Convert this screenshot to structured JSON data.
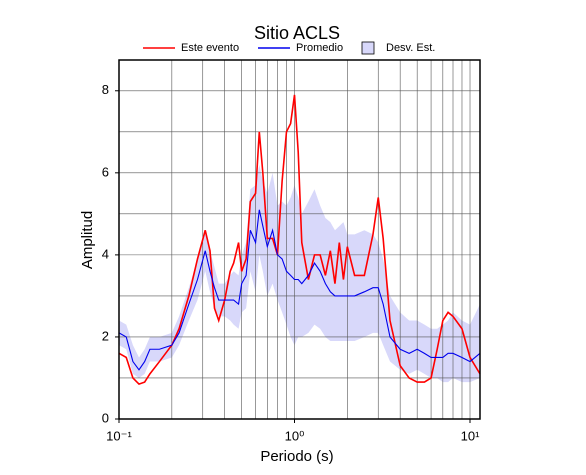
{
  "chart_data": {
    "type": "line",
    "title": "Sitio ACLS",
    "xlabel": "Periodo (s)",
    "ylabel": "Amplitud",
    "xscale": "log",
    "grid": true,
    "xlim": [
      0.1,
      11.4
    ],
    "ylim": [
      0,
      8.75
    ],
    "xticks": [
      {
        "value": 0.1,
        "label": "10⁻¹"
      },
      {
        "value": 1,
        "label": "10⁰"
      },
      {
        "value": 10,
        "label": "10¹"
      }
    ],
    "xminor": [
      0.2,
      0.3,
      0.4,
      0.5,
      0.6,
      0.7,
      0.8,
      0.9,
      2,
      3,
      4,
      5,
      6,
      7,
      8,
      9
    ],
    "yticks": [
      0,
      2,
      4,
      6,
      8
    ],
    "yminor": [
      1,
      3,
      5,
      7
    ],
    "x": [
      0.1,
      0.11,
      0.12,
      0.13,
      0.14,
      0.15,
      0.17,
      0.2,
      0.22,
      0.25,
      0.28,
      0.31,
      0.33,
      0.35,
      0.37,
      0.4,
      0.43,
      0.45,
      0.48,
      0.5,
      0.53,
      0.56,
      0.6,
      0.63,
      0.66,
      0.7,
      0.75,
      0.8,
      0.85,
      0.9,
      0.95,
      1.0,
      1.05,
      1.1,
      1.2,
      1.3,
      1.4,
      1.5,
      1.6,
      1.7,
      1.8,
      1.9,
      2.0,
      2.2,
      2.5,
      2.8,
      3.0,
      3.2,
      3.5,
      4.0,
      4.5,
      5.0,
      5.5,
      6.0,
      6.5,
      7.0,
      7.5,
      8.0,
      9.0,
      10,
      11.4
    ],
    "band": {
      "name": "Desv. Est.",
      "color": "#d8d8fa",
      "upper": [
        2.4,
        2.3,
        1.8,
        1.5,
        1.7,
        2.0,
        2.0,
        2.1,
        2.5,
        3.2,
        3.9,
        4.6,
        4.1,
        3.7,
        3.3,
        3.3,
        3.5,
        3.6,
        3.5,
        4.0,
        4.3,
        5.6,
        5.7,
        6.2,
        5.8,
        5.5,
        6.0,
        5.2,
        5.3,
        5.2,
        5.4,
        5.7,
        5.4,
        5.0,
        5.3,
        5.6,
        5.2,
        4.9,
        4.8,
        4.6,
        4.7,
        4.8,
        4.5,
        4.5,
        4.6,
        4.5,
        4.3,
        3.9,
        3.0,
        2.6,
        2.4,
        2.4,
        2.3,
        2.2,
        2.2,
        2.3,
        2.4,
        2.6,
        2.4,
        2.3,
        2.8
      ],
      "lower": [
        1.8,
        1.7,
        1.1,
        1.0,
        1.1,
        1.4,
        1.4,
        1.5,
        1.8,
        2.4,
        2.9,
        3.6,
        3.1,
        2.7,
        2.5,
        2.5,
        2.4,
        2.3,
        2.2,
        2.6,
        2.7,
        3.6,
        3.1,
        4.0,
        3.6,
        3.0,
        3.3,
        2.9,
        2.6,
        2.3,
        2.0,
        1.8,
        2.0,
        2.0,
        2.1,
        2.3,
        2.2,
        2.0,
        1.9,
        1.9,
        1.9,
        1.9,
        1.9,
        1.9,
        2.0,
        2.1,
        2.1,
        1.8,
        1.4,
        1.2,
        1.1,
        1.2,
        1.1,
        1.0,
        1.0,
        0.9,
        0.9,
        1.0,
        0.9,
        0.9,
        1.0
      ]
    },
    "series": [
      {
        "name": "Este evento",
        "color": "#ff0000",
        "values": [
          1.6,
          1.5,
          1.0,
          0.85,
          0.9,
          1.1,
          1.4,
          1.8,
          2.2,
          3.0,
          3.9,
          4.6,
          4.1,
          2.7,
          2.4,
          2.9,
          3.6,
          3.8,
          4.3,
          3.6,
          3.9,
          5.3,
          5.5,
          7.0,
          6.0,
          4.4,
          4.4,
          4.0,
          5.8,
          7.0,
          7.2,
          7.9,
          6.5,
          4.3,
          3.4,
          4.0,
          4.0,
          3.5,
          4.1,
          3.3,
          4.3,
          3.4,
          4.2,
          3.5,
          3.5,
          4.5,
          5.4,
          4.4,
          2.4,
          1.3,
          1.0,
          0.9,
          0.9,
          1.0,
          1.7,
          2.4,
          2.6,
          2.5,
          2.2,
          1.5,
          1.1
        ]
      },
      {
        "name": "Promedio",
        "color": "#0000ee",
        "values": [
          2.1,
          2.0,
          1.4,
          1.2,
          1.4,
          1.7,
          1.7,
          1.8,
          2.1,
          2.8,
          3.4,
          4.1,
          3.6,
          3.2,
          2.9,
          2.9,
          2.9,
          2.9,
          2.8,
          3.3,
          3.5,
          4.6,
          4.3,
          5.1,
          4.7,
          4.2,
          4.6,
          4.0,
          3.9,
          3.6,
          3.5,
          3.4,
          3.4,
          3.3,
          3.5,
          3.8,
          3.6,
          3.3,
          3.1,
          3.0,
          3.0,
          3.0,
          3.0,
          3.0,
          3.1,
          3.2,
          3.2,
          2.8,
          2.0,
          1.7,
          1.6,
          1.7,
          1.6,
          1.5,
          1.5,
          1.5,
          1.6,
          1.6,
          1.5,
          1.4,
          1.6
        ]
      }
    ]
  }
}
